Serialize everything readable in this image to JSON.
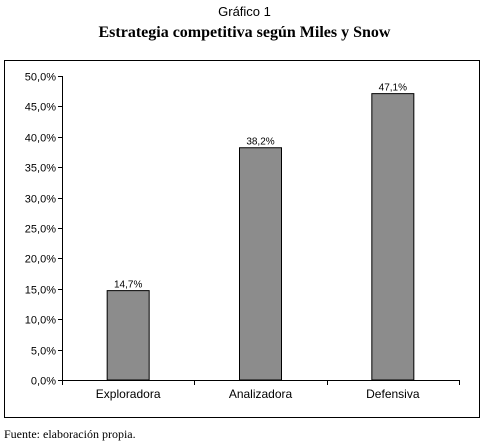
{
  "header": {
    "figure_label": "Gráfico 1",
    "title": "Estrategia competitiva según Miles y Snow"
  },
  "footer": {
    "source": "Fuente: elaboración propia."
  },
  "chart_data": {
    "type": "bar",
    "categories": [
      "Exploradora",
      "Analizadora",
      "Defensiva"
    ],
    "values": [
      14.7,
      38.2,
      47.1
    ],
    "data_labels": [
      "14,7%",
      "38,2%",
      "47,1%"
    ],
    "title": "Estrategia competitiva según Miles y Snow",
    "xlabel": "",
    "ylabel": "",
    "ylim": [
      0,
      50
    ],
    "y_ticks": [
      {
        "value": 0,
        "label": "0,0%"
      },
      {
        "value": 5,
        "label": "5,0%"
      },
      {
        "value": 10,
        "label": "10,0%"
      },
      {
        "value": 15,
        "label": "15,0%"
      },
      {
        "value": 20,
        "label": "20,0%"
      },
      {
        "value": 25,
        "label": "25,0%"
      },
      {
        "value": 30,
        "label": "30,0%"
      },
      {
        "value": 35,
        "label": "35,0%"
      },
      {
        "value": 40,
        "label": "40,0%"
      },
      {
        "value": 45,
        "label": "45,0%"
      },
      {
        "value": 50,
        "label": "50,0%"
      }
    ],
    "grid": false,
    "legend": "none",
    "bar_color": "#8c8c8c",
    "bar_stroke": "#000000"
  }
}
